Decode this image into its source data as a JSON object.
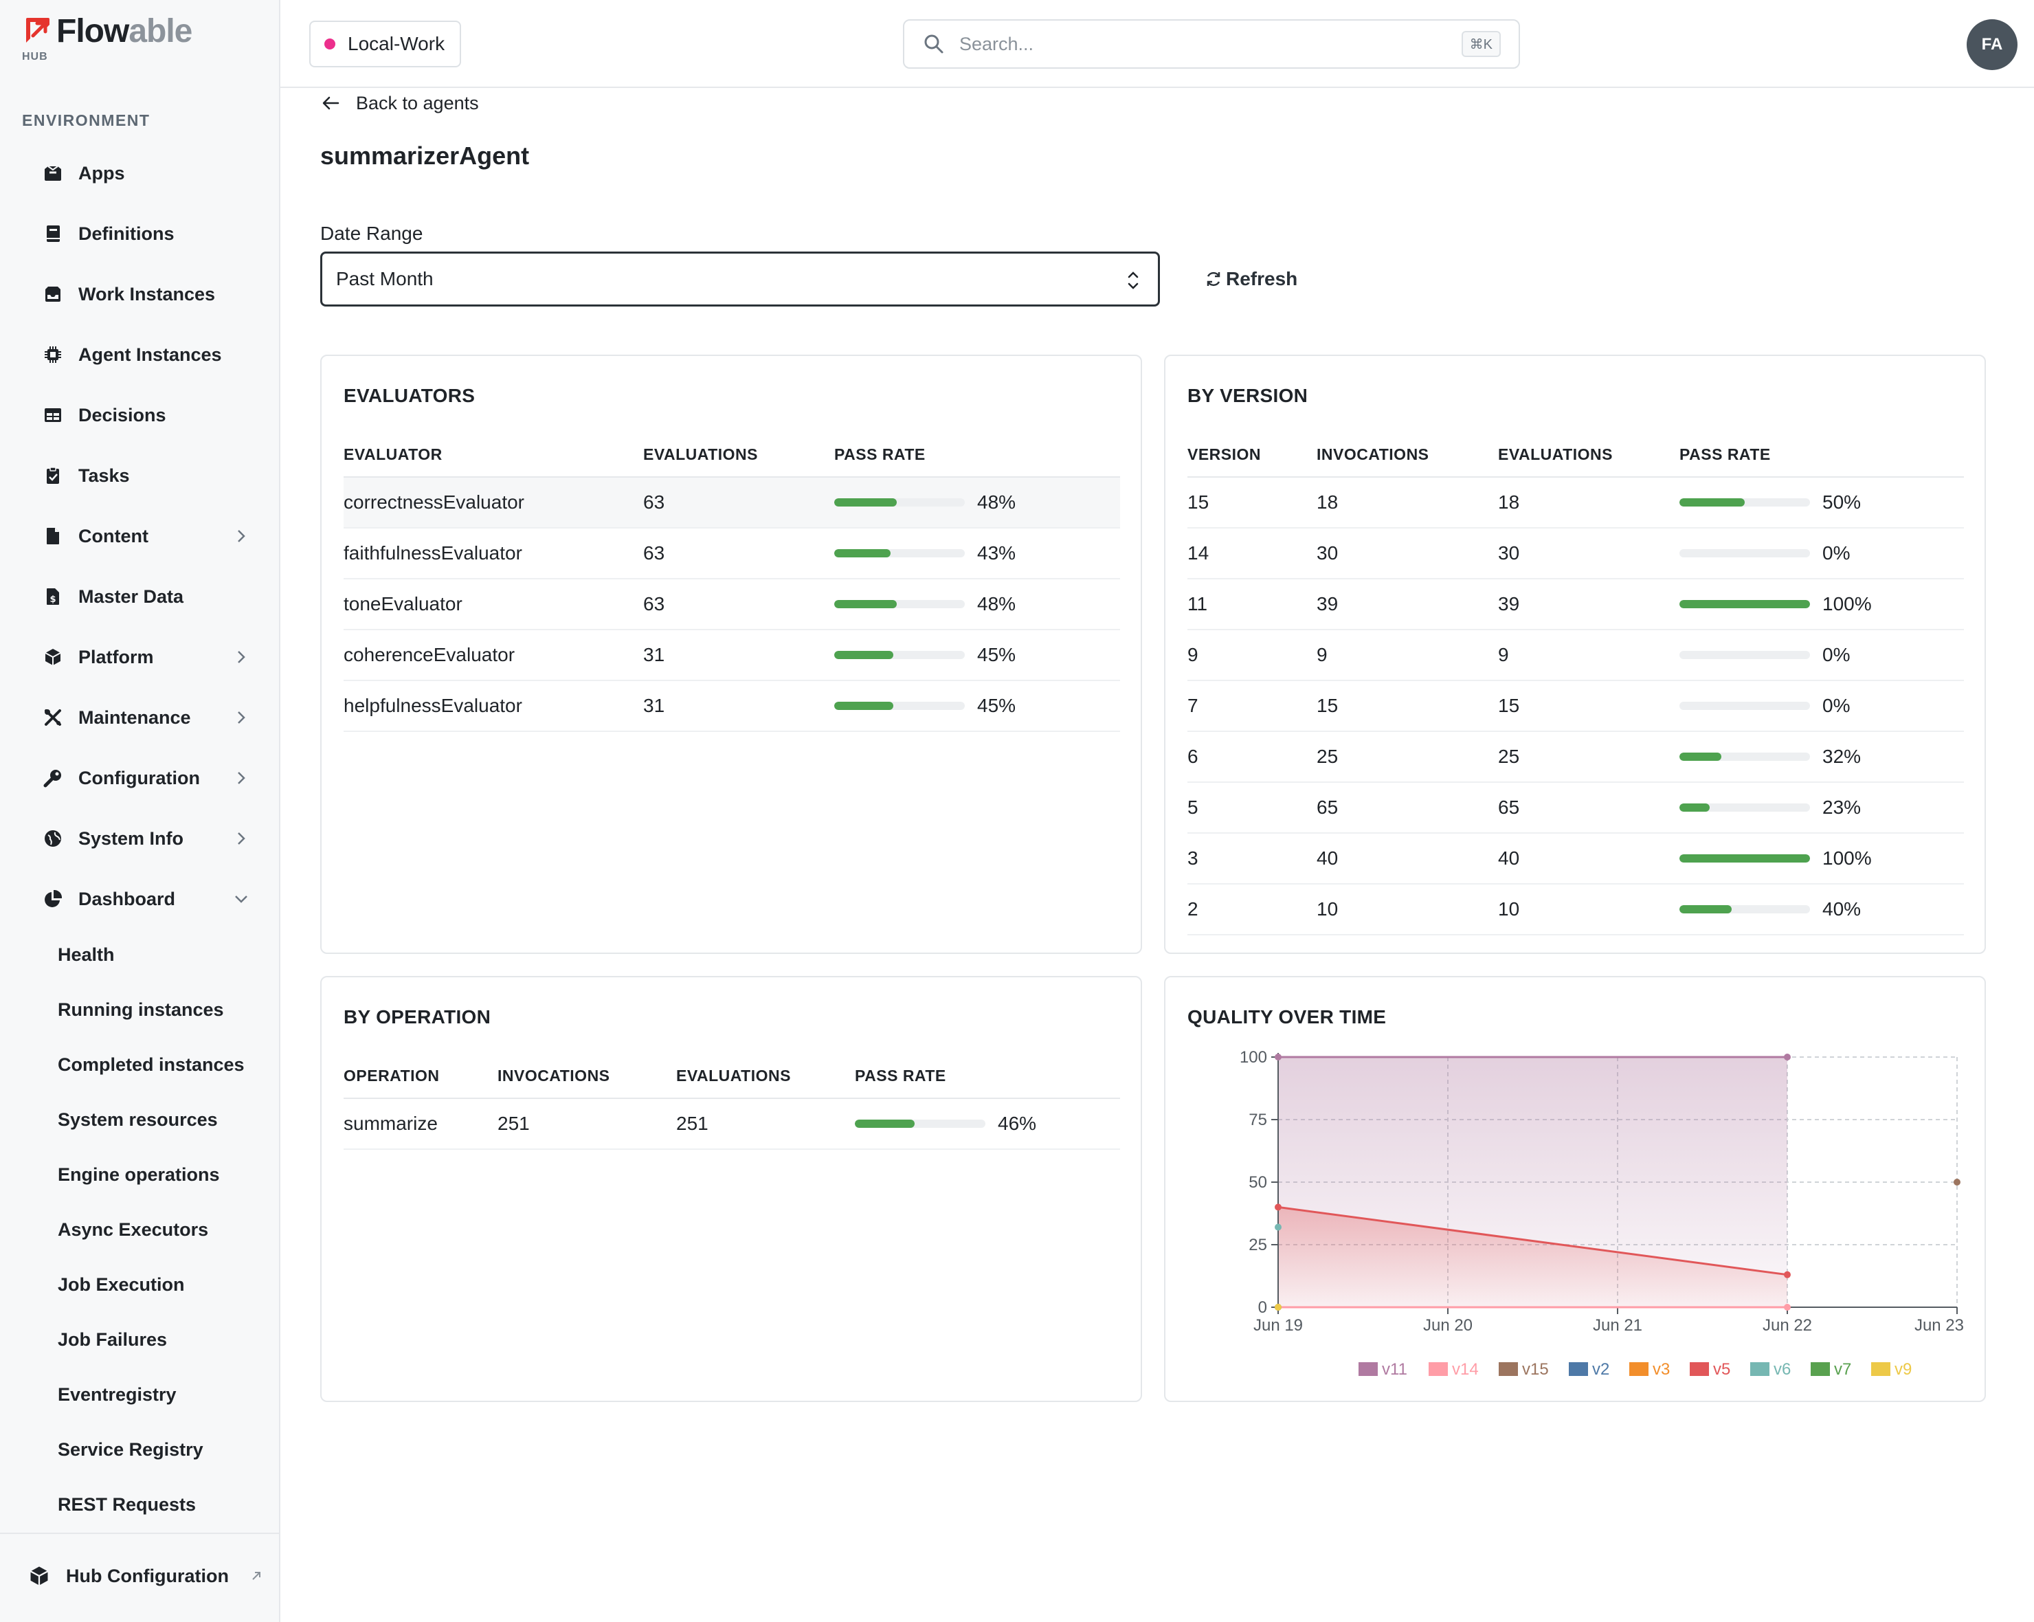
{
  "brand": {
    "name_bold": "Flow",
    "name_light": "able",
    "sub": "HUB"
  },
  "sidebar": {
    "section_label": "ENVIRONMENT",
    "items": [
      {
        "label": "Apps"
      },
      {
        "label": "Definitions"
      },
      {
        "label": "Work Instances"
      },
      {
        "label": "Agent Instances"
      },
      {
        "label": "Decisions"
      },
      {
        "label": "Tasks"
      },
      {
        "label": "Content"
      },
      {
        "label": "Master Data"
      },
      {
        "label": "Platform"
      },
      {
        "label": "Maintenance"
      },
      {
        "label": "Configuration"
      },
      {
        "label": "System Info"
      },
      {
        "label": "Dashboard"
      }
    ],
    "dashboard_children": [
      "Health",
      "Running instances",
      "Completed instances",
      "System resources",
      "Engine operations",
      "Async Executors",
      "Job Execution",
      "Job Failures",
      "Eventregistry",
      "Service Registry",
      "REST Requests"
    ],
    "footer": {
      "label": "Hub Configuration"
    }
  },
  "topbar": {
    "environment": "Local-Work",
    "environment_color": "#ec2f8c",
    "search_placeholder": "Search...",
    "search_shortcut": "⌘K",
    "avatar_initials": "FA"
  },
  "main": {
    "back_label": "Back to agents",
    "title": "summarizerAgent",
    "date_range_label": "Date Range",
    "date_range_value": "Past Month",
    "refresh_label": "Refresh"
  },
  "evaluators": {
    "title": "EVALUATORS",
    "headers": [
      "EVALUATOR",
      "EVALUATIONS",
      "PASS RATE"
    ],
    "rows": [
      {
        "name": "correctnessEvaluator",
        "evaluations": "63",
        "pass_rate": 48,
        "pass_rate_text": "48%"
      },
      {
        "name": "faithfulnessEvaluator",
        "evaluations": "63",
        "pass_rate": 43,
        "pass_rate_text": "43%"
      },
      {
        "name": "toneEvaluator",
        "evaluations": "63",
        "pass_rate": 48,
        "pass_rate_text": "48%"
      },
      {
        "name": "coherenceEvaluator",
        "evaluations": "31",
        "pass_rate": 45,
        "pass_rate_text": "45%"
      },
      {
        "name": "helpfulnessEvaluator",
        "evaluations": "31",
        "pass_rate": 45,
        "pass_rate_text": "45%"
      }
    ]
  },
  "by_version": {
    "title": "BY VERSION",
    "headers": [
      "VERSION",
      "INVOCATIONS",
      "EVALUATIONS",
      "PASS RATE"
    ],
    "rows": [
      {
        "version": "15",
        "invocations": "18",
        "evaluations": "18",
        "pass_rate": 50,
        "pass_rate_text": "50%"
      },
      {
        "version": "14",
        "invocations": "30",
        "evaluations": "30",
        "pass_rate": 0,
        "pass_rate_text": "0%"
      },
      {
        "version": "11",
        "invocations": "39",
        "evaluations": "39",
        "pass_rate": 100,
        "pass_rate_text": "100%"
      },
      {
        "version": "9",
        "invocations": "9",
        "evaluations": "9",
        "pass_rate": 0,
        "pass_rate_text": "0%"
      },
      {
        "version": "7",
        "invocations": "15",
        "evaluations": "15",
        "pass_rate": 0,
        "pass_rate_text": "0%"
      },
      {
        "version": "6",
        "invocations": "25",
        "evaluations": "25",
        "pass_rate": 32,
        "pass_rate_text": "32%"
      },
      {
        "version": "5",
        "invocations": "65",
        "evaluations": "65",
        "pass_rate": 23,
        "pass_rate_text": "23%"
      },
      {
        "version": "3",
        "invocations": "40",
        "evaluations": "40",
        "pass_rate": 100,
        "pass_rate_text": "100%"
      },
      {
        "version": "2",
        "invocations": "10",
        "evaluations": "10",
        "pass_rate": 40,
        "pass_rate_text": "40%"
      }
    ]
  },
  "by_operation": {
    "title": "BY OPERATION",
    "headers": [
      "OPERATION",
      "INVOCATIONS",
      "EVALUATIONS",
      "PASS RATE"
    ],
    "rows": [
      {
        "operation": "summarize",
        "invocations": "251",
        "evaluations": "251",
        "pass_rate": 46,
        "pass_rate_text": "46%"
      }
    ]
  },
  "colors": {
    "accent_bar": "#4ea24f"
  },
  "chart_data": {
    "type": "area",
    "title": "QUALITY OVER TIME",
    "x_tick_labels": [
      "Jun 19",
      "Jun 20",
      "Jun 21",
      "Jun 22",
      "Jun 23"
    ],
    "y_ticks": [
      0,
      25,
      50,
      75,
      100
    ],
    "ylim": [
      0,
      100
    ],
    "grid": true,
    "legend_position": "bottom",
    "series": [
      {
        "name": "v11",
        "color": "#b07aa1",
        "points": [
          [
            "Jun 19",
            100
          ],
          [
            "Jun 22",
            100
          ]
        ],
        "filled": true
      },
      {
        "name": "v14",
        "color": "#ff9da7",
        "points": [
          [
            "Jun 19",
            0
          ],
          [
            "Jun 22",
            0
          ]
        ]
      },
      {
        "name": "v15",
        "color": "#9c755f",
        "points": [
          [
            "Jun 23",
            50
          ]
        ]
      },
      {
        "name": "v2",
        "color": "#4e79a7",
        "points": []
      },
      {
        "name": "v3",
        "color": "#f28e2b",
        "points": []
      },
      {
        "name": "v5",
        "color": "#e15759",
        "points": [
          [
            "Jun 19",
            40
          ],
          [
            "Jun 22",
            13
          ]
        ],
        "filled": true
      },
      {
        "name": "v6",
        "color": "#76b7b2",
        "points": [
          [
            "Jun 19",
            32
          ]
        ]
      },
      {
        "name": "v7",
        "color": "#59a14f",
        "points": [
          [
            "Jun 19",
            0
          ]
        ]
      },
      {
        "name": "v9",
        "color": "#edc948",
        "points": [
          [
            "Jun 19",
            0
          ]
        ]
      }
    ]
  }
}
